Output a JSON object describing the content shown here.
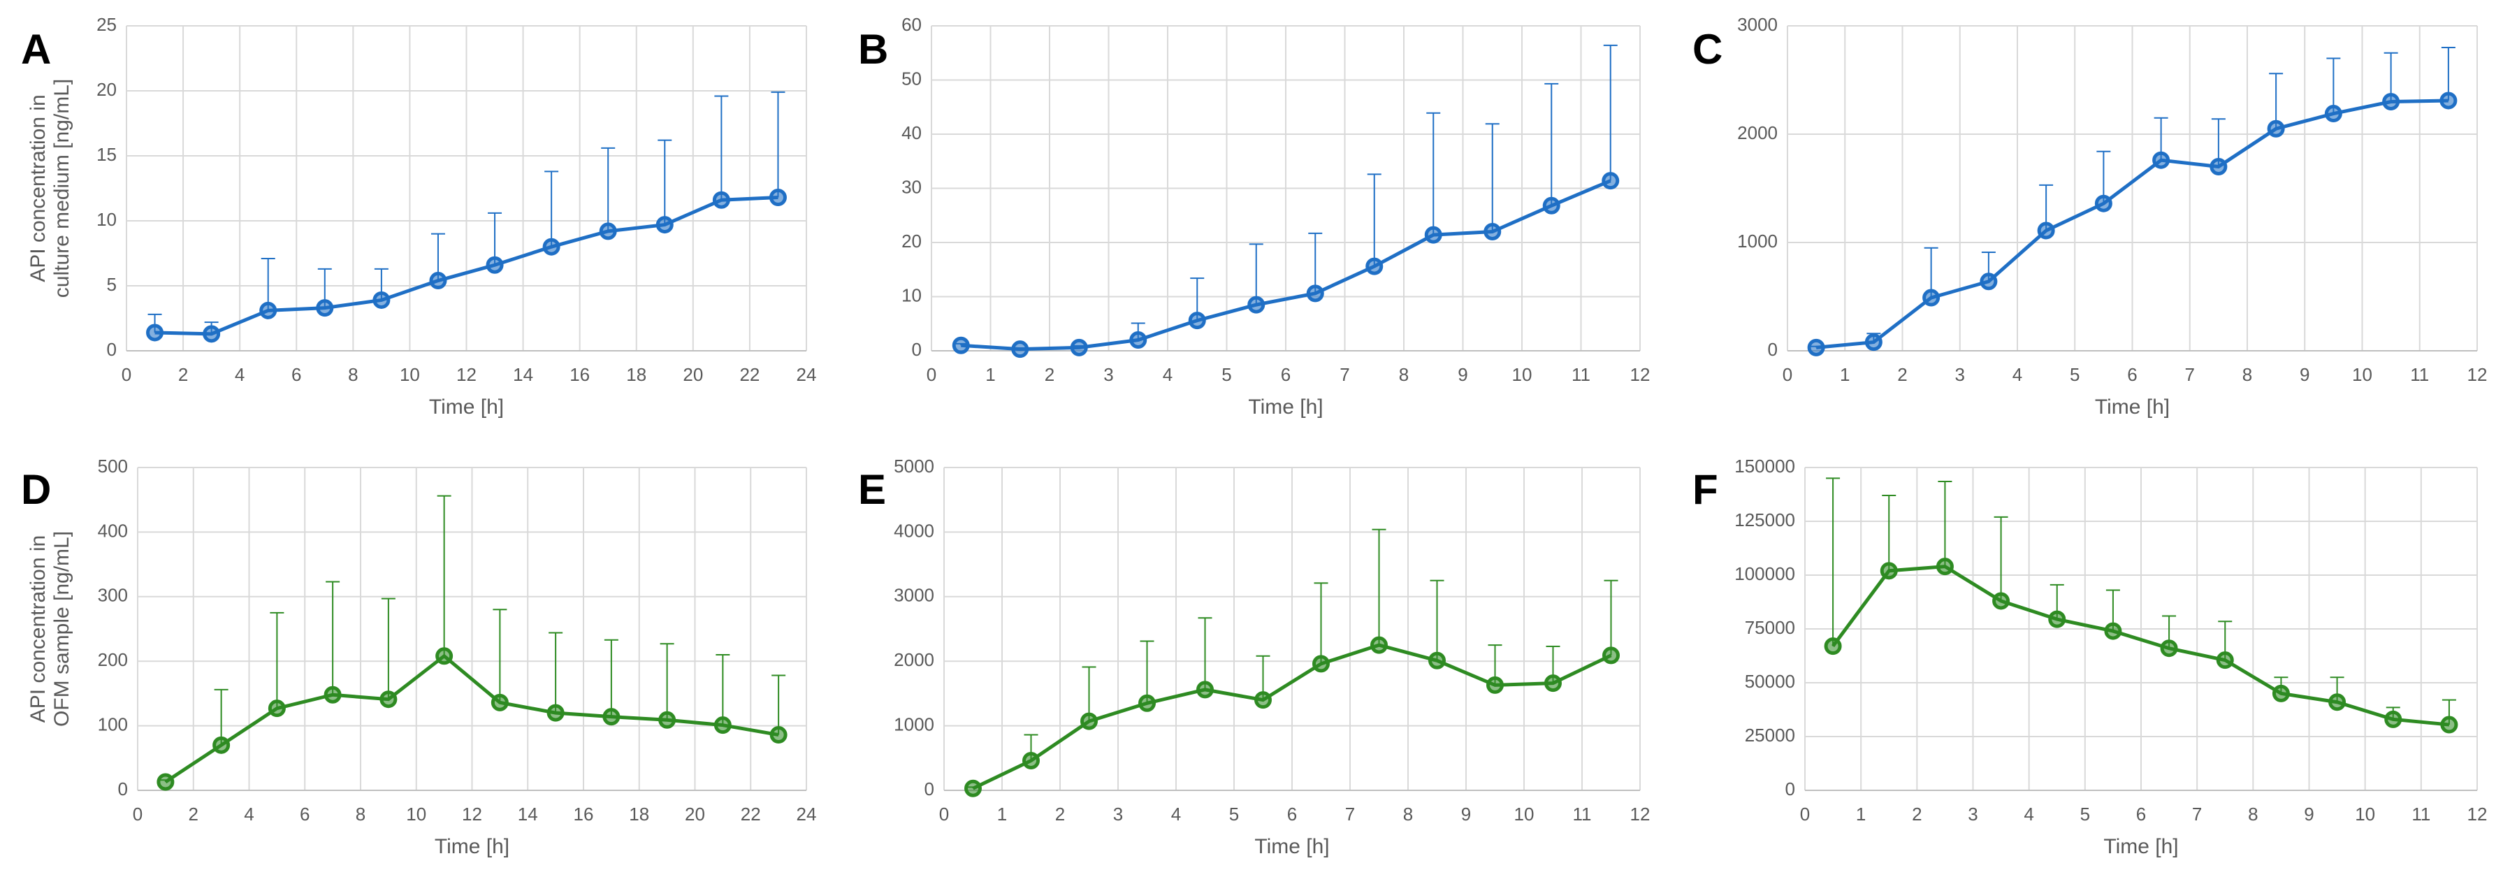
{
  "chart_data": [
    {
      "type": "line",
      "panel": "A",
      "xlabel": "Time [h]",
      "ylabel": [
        "API concentration in",
        "culture medium [ng/mL]"
      ],
      "color": "#1f6fc5",
      "x": [
        1,
        3,
        5,
        7,
        9,
        11,
        13,
        15,
        17,
        19,
        21,
        23
      ],
      "values": [
        1.4,
        1.3,
        3.1,
        3.3,
        3.9,
        5.4,
        6.6,
        8.0,
        9.2,
        9.7,
        11.6,
        11.8
      ],
      "errors": [
        1.4,
        0.9,
        4.0,
        3.0,
        2.4,
        3.6,
        4.0,
        5.8,
        6.4,
        6.5,
        8.0,
        8.1
      ],
      "xlim": [
        0,
        24
      ],
      "xticks": [
        0,
        2,
        4,
        6,
        8,
        10,
        12,
        14,
        16,
        18,
        20,
        22,
        24
      ],
      "ylim": [
        0,
        25
      ],
      "yticks": [
        0,
        5,
        10,
        15,
        20,
        25
      ],
      "grid": true
    },
    {
      "type": "line",
      "panel": "B",
      "xlabel": "Time [h]",
      "color": "#1f6fc5",
      "x": [
        0.5,
        1.5,
        2.5,
        3.5,
        4.5,
        5.5,
        6.5,
        7.5,
        8.5,
        9.5,
        10.5,
        11.5
      ],
      "values": [
        1.0,
        0.3,
        0.6,
        2.0,
        5.6,
        8.5,
        10.6,
        15.6,
        21.4,
        22.0,
        26.8,
        31.4
      ],
      "errors": [
        0.3,
        0.2,
        0.3,
        3.1,
        7.8,
        11.2,
        11.1,
        17.0,
        22.5,
        19.9,
        22.5,
        25.0
      ],
      "xlim": [
        0,
        12
      ],
      "xticks": [
        0,
        1,
        2,
        3,
        4,
        5,
        6,
        7,
        8,
        9,
        10,
        11,
        12
      ],
      "ylim": [
        0,
        60
      ],
      "yticks": [
        0,
        10,
        20,
        30,
        40,
        50,
        60
      ],
      "grid": true
    },
    {
      "type": "line",
      "panel": "C",
      "xlabel": "Time [h]",
      "color": "#1f6fc5",
      "x": [
        0.5,
        1.5,
        2.5,
        3.5,
        4.5,
        5.5,
        6.5,
        7.5,
        8.5,
        9.5,
        10.5,
        11.5
      ],
      "values": [
        30,
        80,
        490,
        640,
        1110,
        1360,
        1760,
        1700,
        2050,
        2190,
        2300,
        2310
      ],
      "errors": [
        10,
        80,
        460,
        270,
        420,
        480,
        390,
        440,
        510,
        510,
        450,
        490
      ],
      "xlim": [
        0,
        12
      ],
      "xticks": [
        0,
        1,
        2,
        3,
        4,
        5,
        6,
        7,
        8,
        9,
        10,
        11,
        12
      ],
      "ylim": [
        0,
        3000
      ],
      "yticks": [
        0,
        1000,
        2000,
        3000
      ],
      "grid": true
    },
    {
      "type": "line",
      "panel": "D",
      "xlabel": "Time [h]",
      "ylabel": [
        "API concentration in",
        "OFM sample [ng/mL]"
      ],
      "color": "#2e8b22",
      "x": [
        1,
        3,
        5,
        7,
        9,
        11,
        13,
        15,
        17,
        19,
        21,
        23
      ],
      "values": [
        13,
        70,
        127,
        148,
        141,
        208,
        136,
        120,
        114,
        109,
        101,
        86
      ],
      "errors": [
        3,
        86,
        148,
        175,
        156,
        248,
        144,
        124,
        119,
        118,
        109,
        92
      ],
      "xlim": [
        0,
        24
      ],
      "xticks": [
        0,
        2,
        4,
        6,
        8,
        10,
        12,
        14,
        16,
        18,
        20,
        22,
        24
      ],
      "ylim": [
        0,
        500
      ],
      "yticks": [
        0,
        100,
        200,
        300,
        400,
        500
      ],
      "grid": true
    },
    {
      "type": "line",
      "panel": "E",
      "xlabel": "Time [h]",
      "color": "#2e8b22",
      "x": [
        0.5,
        1.5,
        2.5,
        3.5,
        4.5,
        5.5,
        6.5,
        7.5,
        8.5,
        9.5,
        10.5,
        11.5
      ],
      "values": [
        30,
        460,
        1070,
        1350,
        1560,
        1400,
        1960,
        2250,
        2010,
        1630,
        1660,
        2090
      ],
      "errors": [
        20,
        400,
        840,
        960,
        1110,
        680,
        1250,
        1790,
        1240,
        620,
        570,
        1160
      ],
      "xlim": [
        0,
        12
      ],
      "xticks": [
        0,
        1,
        2,
        3,
        4,
        5,
        6,
        7,
        8,
        9,
        10,
        11,
        12
      ],
      "ylim": [
        0,
        5000
      ],
      "yticks": [
        0,
        1000,
        2000,
        3000,
        4000,
        5000
      ],
      "grid": true
    },
    {
      "type": "line",
      "panel": "F",
      "xlabel": "Time [h]",
      "color": "#2e8b22",
      "x": [
        0.5,
        1.5,
        2.5,
        3.5,
        4.5,
        5.5,
        6.5,
        7.5,
        8.5,
        9.5,
        10.5,
        11.5
      ],
      "values": [
        67000,
        102000,
        104000,
        88000,
        79500,
        74000,
        66000,
        60500,
        45000,
        41000,
        33000,
        30500
      ],
      "errors": [
        78000,
        35000,
        39500,
        39000,
        16000,
        19000,
        15000,
        18000,
        7500,
        11500,
        5500,
        11500
      ],
      "xlim": [
        0,
        12
      ],
      "xticks": [
        0,
        1,
        2,
        3,
        4,
        5,
        6,
        7,
        8,
        9,
        10,
        11,
        12
      ],
      "ylim": [
        0,
        150000
      ],
      "yticks": [
        0,
        25000,
        50000,
        75000,
        100000,
        125000,
        150000
      ],
      "grid": true
    }
  ]
}
